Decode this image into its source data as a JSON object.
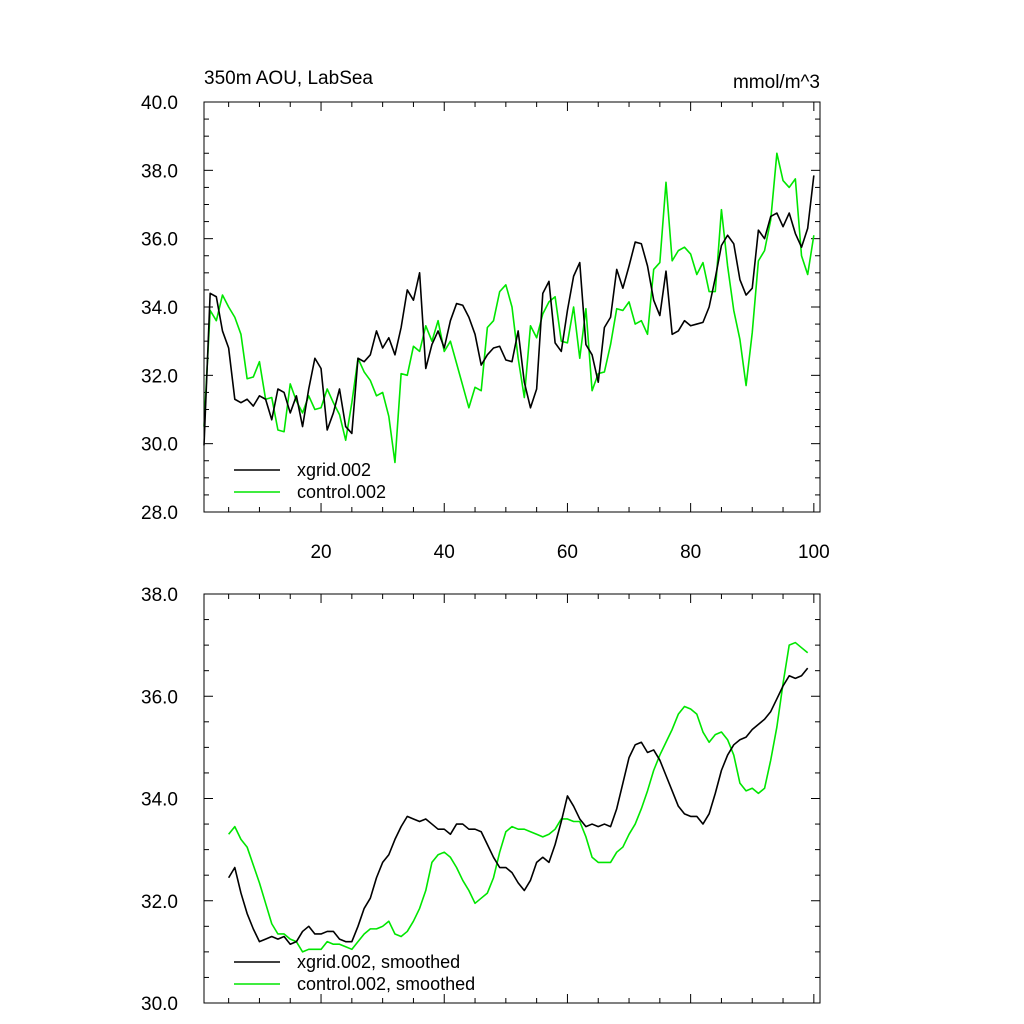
{
  "chart_data": [
    {
      "type": "line",
      "title_left": "350m AOU, LabSea",
      "title_right": "mmol/m^3",
      "xlim": [
        1,
        101
      ],
      "ylim": [
        28.0,
        40.0
      ],
      "y_ticks": [
        "28.0",
        "30.0",
        "32.0",
        "34.0",
        "36.0",
        "38.0",
        "40.0"
      ],
      "x_ticks": [
        "20",
        "40",
        "60",
        "80",
        "100"
      ],
      "legend": "bottom-left",
      "series": [
        {
          "name": "xgrid.002",
          "color": "#000000",
          "values": [
            29.95,
            34.4,
            34.3,
            33.3,
            32.8,
            31.3,
            31.2,
            31.3,
            31.1,
            31.4,
            31.3,
            30.7,
            31.6,
            31.5,
            30.9,
            31.4,
            30.5,
            31.6,
            32.5,
            32.2,
            30.4,
            30.9,
            31.6,
            30.5,
            30.3,
            32.5,
            32.4,
            32.6,
            33.3,
            32.8,
            33.1,
            32.6,
            33.4,
            34.5,
            34.2,
            35.0,
            32.2,
            32.9,
            33.3,
            32.8,
            33.6,
            34.1,
            34.05,
            33.7,
            33.2,
            32.3,
            32.6,
            32.8,
            32.85,
            32.45,
            32.4,
            33.3,
            31.8,
            31.05,
            31.6,
            34.4,
            34.75,
            32.95,
            32.7,
            33.9,
            34.9,
            35.3,
            32.9,
            32.6,
            31.8,
            33.4,
            33.7,
            35.1,
            34.55,
            35.2,
            35.9,
            35.85,
            35.2,
            34.2,
            33.75,
            35.05,
            33.2,
            33.3,
            33.6,
            33.45,
            33.5,
            33.55,
            34.0,
            34.85,
            35.8,
            36.1,
            35.85,
            34.8,
            34.35,
            34.55,
            36.25,
            36.0,
            36.65,
            36.75,
            36.35,
            36.75,
            36.15,
            35.75,
            36.3,
            37.85
          ]
        },
        {
          "name": "control.002",
          "color": "#00e600",
          "values": [
            30.5,
            33.9,
            33.6,
            34.35,
            34.0,
            33.7,
            33.2,
            31.9,
            31.95,
            32.4,
            31.3,
            31.35,
            30.4,
            30.35,
            31.75,
            31.25,
            30.9,
            31.4,
            31.0,
            31.05,
            31.6,
            31.2,
            30.85,
            30.1,
            31.2,
            32.5,
            32.1,
            31.85,
            31.4,
            31.5,
            30.8,
            29.45,
            32.05,
            32.0,
            32.85,
            32.7,
            33.45,
            33.0,
            33.6,
            32.7,
            33.0,
            32.35,
            31.7,
            31.05,
            31.65,
            31.55,
            33.4,
            33.6,
            34.45,
            34.65,
            34.0,
            32.5,
            31.35,
            33.45,
            33.1,
            33.8,
            34.15,
            34.3,
            33.0,
            32.95,
            34.0,
            32.5,
            33.95,
            31.55,
            32.05,
            32.1,
            32.9,
            33.95,
            33.9,
            34.15,
            33.5,
            33.6,
            33.2,
            35.1,
            35.3,
            37.65,
            35.35,
            35.65,
            35.75,
            35.55,
            34.95,
            35.3,
            34.45,
            34.45,
            36.85,
            35.2,
            33.9,
            33.05,
            31.7,
            33.25,
            35.35,
            35.65,
            36.55,
            38.5,
            37.7,
            37.5,
            37.75,
            35.5,
            34.95,
            36.1
          ]
        }
      ]
    },
    {
      "type": "line",
      "xlim": [
        1,
        101
      ],
      "ylim": [
        30.0,
        38.0
      ],
      "y_ticks": [
        "30.0",
        "32.0",
        "34.0",
        "36.0",
        "38.0"
      ],
      "legend": "bottom-left",
      "series": [
        {
          "name": "xgrid.002, smoothed",
          "color": "#000000",
          "x_start": 5,
          "values": [
            32.45,
            32.65,
            32.15,
            31.75,
            31.45,
            31.2,
            31.25,
            31.3,
            31.25,
            31.3,
            31.15,
            31.2,
            31.4,
            31.5,
            31.35,
            31.35,
            31.4,
            31.4,
            31.25,
            31.2,
            31.2,
            31.5,
            31.85,
            32.05,
            32.45,
            32.75,
            32.9,
            33.2,
            33.45,
            33.65,
            33.6,
            33.55,
            33.6,
            33.5,
            33.4,
            33.4,
            33.3,
            33.5,
            33.5,
            33.4,
            33.4,
            33.35,
            33.1,
            32.85,
            32.65,
            32.65,
            32.55,
            32.35,
            32.2,
            32.4,
            32.75,
            32.85,
            32.75,
            33.1,
            33.55,
            34.05,
            33.85,
            33.6,
            33.45,
            33.5,
            33.45,
            33.5,
            33.45,
            33.8,
            34.3,
            34.8,
            35.05,
            35.1,
            34.9,
            34.95,
            34.75,
            34.45,
            34.15,
            33.85,
            33.7,
            33.65,
            33.65,
            33.5,
            33.7,
            34.1,
            34.55,
            34.85,
            35.05,
            35.15,
            35.2,
            35.35,
            35.45,
            35.55,
            35.7,
            35.95,
            36.2,
            36.4,
            36.35,
            36.4,
            36.55
          ]
        },
        {
          "name": "control.002, smoothed",
          "color": "#00e600",
          "x_start": 5,
          "values": [
            33.3,
            33.45,
            33.2,
            33.05,
            32.7,
            32.35,
            31.95,
            31.55,
            31.35,
            31.35,
            31.25,
            31.2,
            31.0,
            31.05,
            31.05,
            31.05,
            31.2,
            31.15,
            31.15,
            31.1,
            31.05,
            31.2,
            31.35,
            31.45,
            31.45,
            31.5,
            31.6,
            31.35,
            31.3,
            31.4,
            31.6,
            31.85,
            32.2,
            32.75,
            32.9,
            32.95,
            32.85,
            32.65,
            32.4,
            32.2,
            31.95,
            32.05,
            32.15,
            32.45,
            32.95,
            33.35,
            33.45,
            33.4,
            33.4,
            33.35,
            33.3,
            33.25,
            33.3,
            33.4,
            33.6,
            33.6,
            33.55,
            33.55,
            33.25,
            32.85,
            32.75,
            32.75,
            32.75,
            32.95,
            33.05,
            33.3,
            33.5,
            33.8,
            34.15,
            34.55,
            34.85,
            35.1,
            35.35,
            35.65,
            35.8,
            35.75,
            35.65,
            35.3,
            35.1,
            35.25,
            35.3,
            35.15,
            34.85,
            34.3,
            34.15,
            34.2,
            34.1,
            34.2,
            34.75,
            35.4,
            36.25,
            37.0,
            37.05,
            36.95,
            36.85
          ]
        }
      ]
    }
  ]
}
